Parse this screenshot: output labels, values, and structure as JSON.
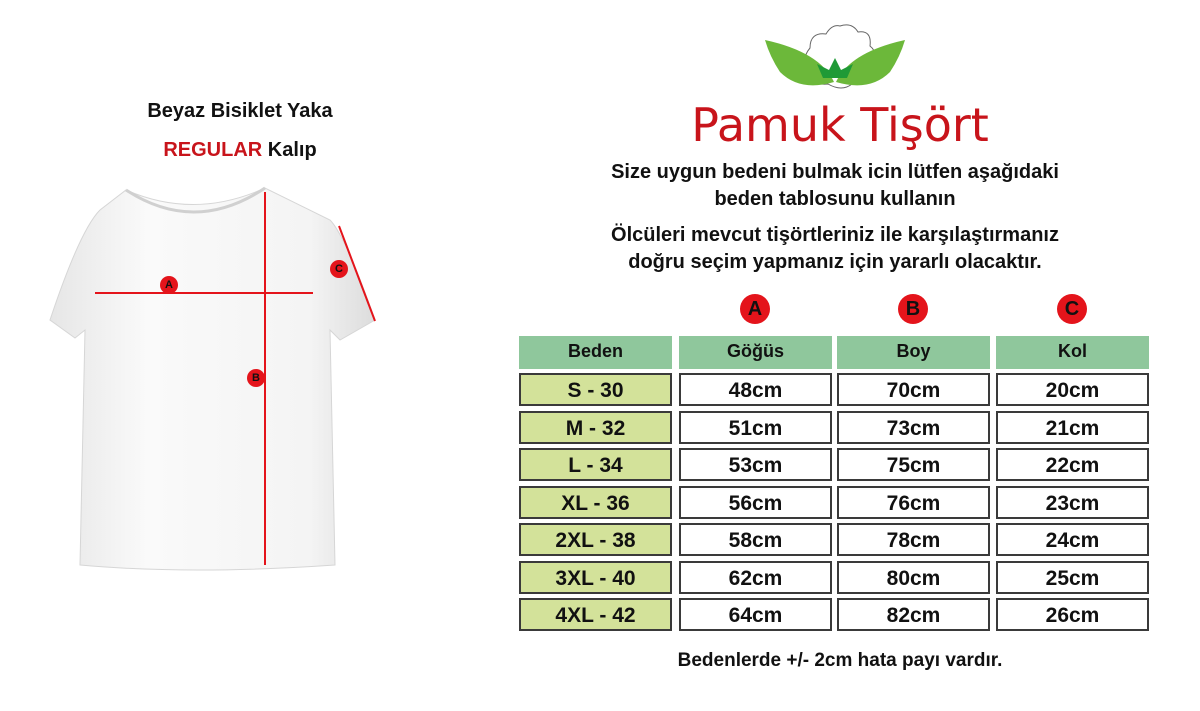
{
  "left": {
    "title": "Beyaz Bisiklet Yaka",
    "fit_highlight": "REGULAR",
    "fit_rest": "Kalıp"
  },
  "brand": {
    "name": "Pamuk Tişört",
    "accent": "#c8141b",
    "leaf": "#5aa832"
  },
  "intro": {
    "line1": "Size uygun bedeni bulmak icin lütfen aşağıdaki",
    "line2": "beden tablosunu kullanın",
    "line3": "Ölcüleri mevcut tişörtleriniz ile karşılaştırmanız",
    "line4": "doğru seçim yapmanız için yararlı olacaktır."
  },
  "markers": [
    "A",
    "B",
    "C"
  ],
  "table": {
    "headers": [
      "Beden",
      "Göğüs",
      "Boy",
      "Kol"
    ],
    "rows": [
      [
        "S - 30",
        "48cm",
        "70cm",
        "20cm"
      ],
      [
        "M - 32",
        "51cm",
        "73cm",
        "21cm"
      ],
      [
        "L - 34",
        "53cm",
        "75cm",
        "22cm"
      ],
      [
        "XL - 36",
        "56cm",
        "76cm",
        "23cm"
      ],
      [
        "2XL - 38",
        "58cm",
        "78cm",
        "24cm"
      ],
      [
        "3XL - 40",
        "62cm",
        "80cm",
        "25cm"
      ],
      [
        "4XL - 42",
        "64cm",
        "82cm",
        "26cm"
      ]
    ],
    "colors": {
      "header": "#8fc79c",
      "size": "#d3e29a",
      "marker": "#e4141b"
    }
  },
  "footer": "Bedenlerde +/- 2cm hata payı vardır."
}
